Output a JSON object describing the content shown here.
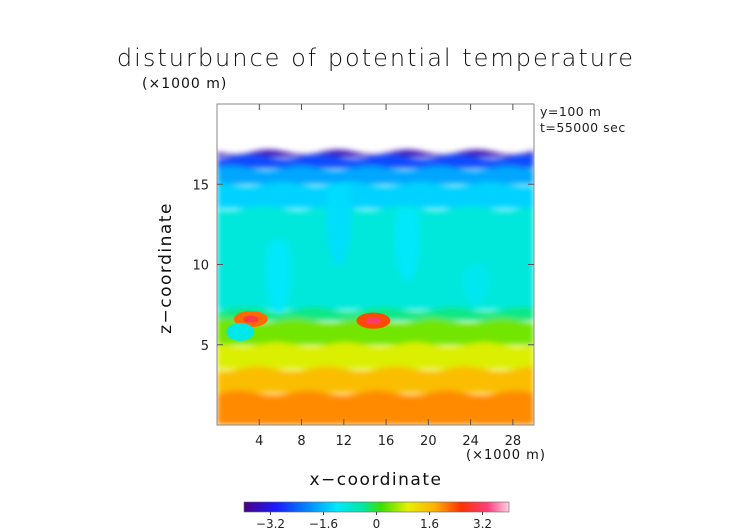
{
  "chart_data": {
    "type": "heatmap",
    "title": "disturbunce of potential temperature",
    "y_unit_label": "(×1000 m)",
    "x_unit_label": "(×1000 m)",
    "xlabel": "x−coordinate",
    "ylabel": "z−coordinate",
    "annotations": [
      "y=100 m",
      "t=55000 sec"
    ],
    "xlim": [
      0,
      30
    ],
    "ylim": [
      0,
      20
    ],
    "x_ticks": [
      4,
      8,
      12,
      16,
      20,
      24,
      28
    ],
    "y_ticks": [
      5,
      10,
      15
    ],
    "x_tick_labels": [
      "4",
      "8",
      "12",
      "16",
      "20",
      "24",
      "28"
    ],
    "y_tick_labels": [
      "5",
      "10",
      "15"
    ],
    "field_top_z": 17,
    "colorbar": {
      "range": [
        -4,
        4
      ],
      "ticks": [
        -3.2,
        -1.6,
        0,
        1.6,
        3.2
      ],
      "tick_labels": [
        "−3.2",
        "−1.6",
        "0",
        "1.6",
        "3.2"
      ]
    },
    "layers": [
      {
        "z_top": 17.0,
        "z_bottom": 16.7,
        "value": -3.6
      },
      {
        "z_top": 16.7,
        "z_bottom": 16.0,
        "value": -2.6
      },
      {
        "z_top": 16.0,
        "z_bottom": 15.0,
        "value": -1.8
      },
      {
        "z_top": 15.0,
        "z_bottom": 13.5,
        "value": -1.4
      },
      {
        "z_top": 13.5,
        "z_bottom": 7.2,
        "value": -0.9
      },
      {
        "z_top": 7.2,
        "z_bottom": 6.5,
        "value": -0.3
      },
      {
        "z_top": 6.5,
        "z_bottom": 5.0,
        "value": 0.4
      },
      {
        "z_top": 5.0,
        "z_bottom": 3.5,
        "value": 0.9
      },
      {
        "z_top": 3.5,
        "z_bottom": 2.0,
        "value": 1.6
      },
      {
        "z_top": 2.0,
        "z_bottom": 0.0,
        "value": 2.0
      }
    ],
    "features": [
      {
        "kind": "plume",
        "x": 11.5,
        "z_top": 15.0,
        "z_bottom": 10.0,
        "value": -1.3
      },
      {
        "kind": "plume",
        "x": 18.0,
        "z_top": 13.5,
        "z_bottom": 9.0,
        "value": -1.2
      },
      {
        "kind": "plume",
        "x": 5.8,
        "z_top": 11.5,
        "z_bottom": 7.0,
        "value": -1.2
      },
      {
        "kind": "plume",
        "x": 24.5,
        "z_top": 10.0,
        "z_bottom": 7.5,
        "value": -1.1
      },
      {
        "kind": "warm-blob",
        "x": 3.2,
        "z": 6.6,
        "value": 2.2
      },
      {
        "kind": "warm-blob",
        "x": 14.8,
        "z": 6.5,
        "value": 2.4
      },
      {
        "kind": "cool-blob",
        "x": 2.2,
        "z": 5.8,
        "value": -1.0
      }
    ]
  }
}
